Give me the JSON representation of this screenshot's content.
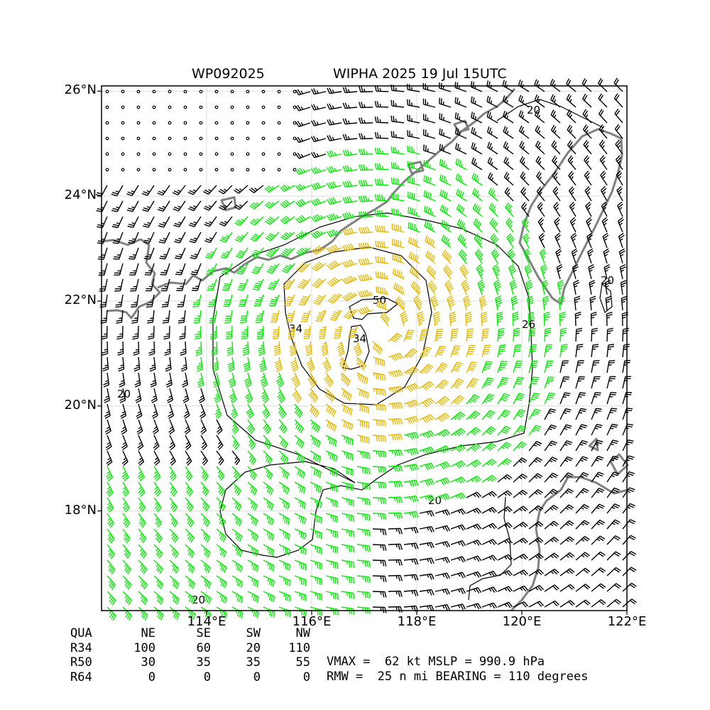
{
  "header": {
    "storm_id": "WP092025",
    "title": "WIPHA 2025 19 Jul 15UTC"
  },
  "map": {
    "lat_range": [
      16.1,
      26.1
    ],
    "lon_range": [
      112.0,
      122.0
    ],
    "lat_ticks": [
      {
        "value": 18,
        "label": "18°N"
      },
      {
        "value": 20,
        "label": "20°N"
      },
      {
        "value": 22,
        "label": "22°N"
      },
      {
        "value": 24,
        "label": "24°N"
      },
      {
        "value": 26,
        "label": "26°N"
      }
    ],
    "lon_ticks": [
      {
        "value": 114,
        "label": "114°E"
      },
      {
        "value": 116,
        "label": "116°E"
      },
      {
        "value": 118,
        "label": "118°E"
      },
      {
        "value": 120,
        "label": "120°E"
      },
      {
        "value": 122,
        "label": "122°E"
      }
    ],
    "grid": true,
    "storm_center": {
      "lat": 21.4,
      "lon": 117.3
    },
    "wind_colors": {
      "below_34": "#000000",
      "r34": "#00ee00",
      "r50": "#e6b800",
      "r64": "#ff6600"
    },
    "coast_color": "#808080",
    "contour_labels": [
      "20",
      "34",
      "50",
      "34",
      "20",
      "26",
      "20",
      "20",
      "20"
    ]
  },
  "table": {
    "headers": [
      "QUA",
      "NE",
      "SE",
      "SW",
      "NW"
    ],
    "rows": [
      {
        "label": "R34",
        "values": [
          "100",
          "60",
          "20",
          "110"
        ]
      },
      {
        "label": "R50",
        "values": [
          "30",
          "35",
          "35",
          "55"
        ]
      },
      {
        "label": "R64",
        "values": [
          "0",
          "0",
          "0",
          "0"
        ]
      }
    ]
  },
  "summary": {
    "line1": "VMAX =  62 kt MSLP = 990.9 hPa",
    "line2": "RMW =  25 n mi BEARING = 110 degrees"
  }
}
